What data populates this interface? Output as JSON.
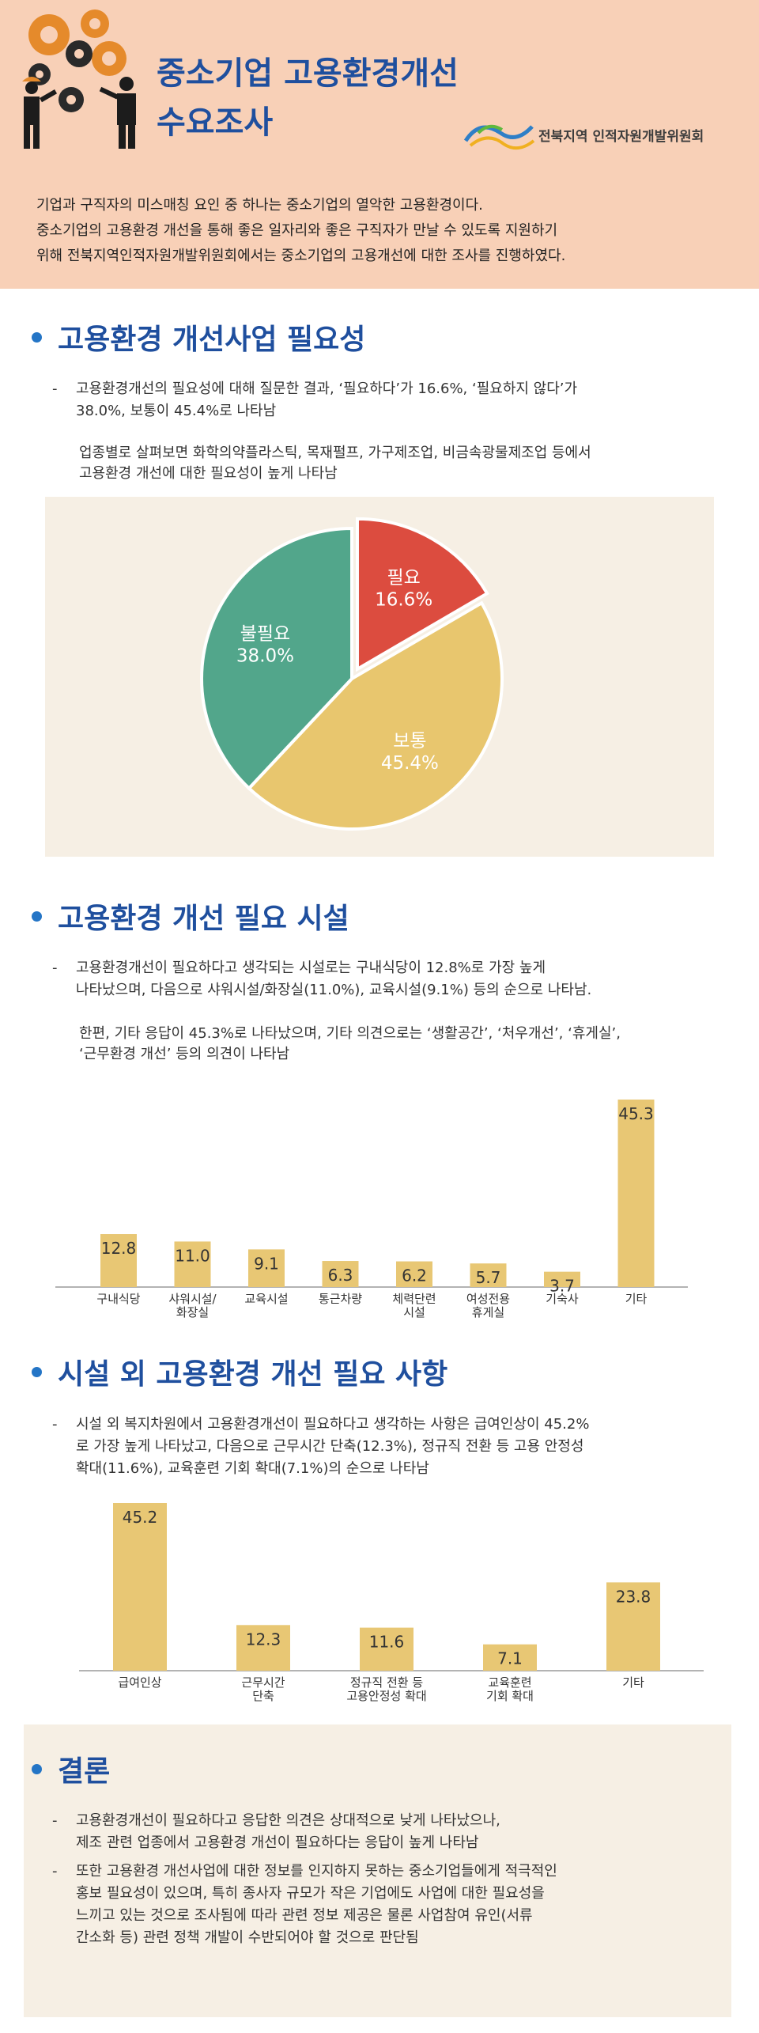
{
  "header": {
    "title_line1": "중소기업 고용환경개선",
    "title_line2": "수요조사",
    "org_name": "전북지역 인적자원개발위원회",
    "intro": [
      "기업과 구직자의 미스매칭 요인 중 하나는 중소기업의 열악한 고용환경이다.",
      "중소기업의 고용환경 개선을 통해 좋은 일자리와 좋은 구직자가 만날 수 있도록 지원하기",
      "위해 전북지역인적자원개발위원회에서는 중소기업의 고용개선에 대한 조사를 진행하였다."
    ],
    "colors": {
      "bg": "#f8d0b7",
      "title": "#1f4f9e"
    }
  },
  "section1": {
    "heading": "고용환경 개선사업 필요성",
    "bullet_line1": "고용환경개선의 필요성에 대해 질문한 결과, ‘필요하다’가 16.6%, ‘필요하지 않다’가",
    "bullet_line2": "38.0%, 보통이 45.4%로 나타남",
    "sub_line1": "업종별로 살펴보면 화학의약플라스틱, 목재펄프, 가구제조업, 비금속광물제조업 등에서",
    "sub_line2": "고용환경 개선에 대한 필요성이 높게 나타남"
  },
  "section2": {
    "heading": "고용환경 개선 필요 시설",
    "bullet_line1": "고용환경개선이 필요하다고 생각되는 시설로는 구내식당이 12.8%로 가장 높게",
    "bullet_line2": "나타났으며, 다음으로 샤워시설/화장실(11.0%), 교육시설(9.1%) 등의 순으로 나타남.",
    "sub_line1": "한편, 기타 응답이 45.3%로 나타났으며, 기타 의견으로는 ‘생활공간’, ‘처우개선’, ‘휴게실’,",
    "sub_line2": "‘근무환경 개선’ 등의 의견이 나타남"
  },
  "section3": {
    "heading": "시설 외 고용환경 개선 필요 사항",
    "bullet_line1": "시설 외 복지차원에서 고용환경개선이 필요하다고 생각하는 사항은 급여인상이 45.2%",
    "bullet_line2": "로 가장 높게 나타났고, 다음으로 근무시간 단축(12.3%), 정규직 전환 등 고용 안정성",
    "bullet_line3": "확대(11.6%), 교육훈련 기회 확대(7.1%)의 순으로 나타남"
  },
  "conclusion": {
    "heading": "결론",
    "b1_line1": "고용환경개선이 필요하다고 응답한 의견은 상대적으로 낮게 나타났으나,",
    "b1_line2": "제조 관련 업종에서 고용환경 개선이 필요하다는 응답이 높게 나타남",
    "b2_line1": "또한 고용환경 개선사업에 대한 정보를 인지하지 못하는 중소기업들에게 적극적인",
    "b2_line2": "홍보 필요성이 있으며, 특히 종사자 규모가 작은 기업에도 사업에 대한 필요성을",
    "b2_line3": "느끼고 있는 것으로 조사됨에 따라 관련 정보 제공은 물론 사업참여 유인(서류",
    "b2_line4": "간소화 등) 관련 정책 개발이 수반되어야 할 것으로 판단됨"
  },
  "chart_data": [
    {
      "type": "pie",
      "slices": [
        {
          "label": "필요",
          "value": 16.6,
          "display": "16.6%",
          "color": "#dc4c3f"
        },
        {
          "label": "보통",
          "value": 45.4,
          "display": "45.4%",
          "color": "#e8c66e"
        },
        {
          "label": "불필요",
          "value": 38.0,
          "display": "38.0%",
          "color": "#52a68b"
        }
      ]
    },
    {
      "type": "bar",
      "categories": [
        [
          "구내식당"
        ],
        [
          "샤워시설/",
          "화장실"
        ],
        [
          "교육시설"
        ],
        [
          "통근차량"
        ],
        [
          "체력단련",
          "시설"
        ],
        [
          "여성전용",
          "휴게실"
        ],
        [
          "기숙사"
        ],
        [
          "기타"
        ]
      ],
      "values": [
        12.8,
        11.0,
        9.1,
        6.3,
        6.2,
        5.7,
        3.7,
        45.3
      ],
      "labels": [
        "12.8",
        "11.0",
        "9.1",
        "6.3",
        "6.2",
        "5.7",
        "3.7",
        "45.3"
      ],
      "ylim": [
        0,
        45.3
      ],
      "bar_color": "#e8c774",
      "grid": false
    },
    {
      "type": "bar",
      "categories": [
        [
          "급여인상"
        ],
        [
          "근무시간",
          "단축"
        ],
        [
          "정규직 전환 등",
          "고용안정성 확대"
        ],
        [
          "교육훈련",
          "기회 확대"
        ],
        [
          "기타"
        ]
      ],
      "values": [
        45.2,
        12.3,
        11.6,
        7.1,
        23.8
      ],
      "labels": [
        "45.2",
        "12.3",
        "11.6",
        "7.1",
        "23.8"
      ],
      "ylim": [
        0,
        45.2
      ],
      "bar_color": "#e8c774",
      "grid": false
    }
  ]
}
